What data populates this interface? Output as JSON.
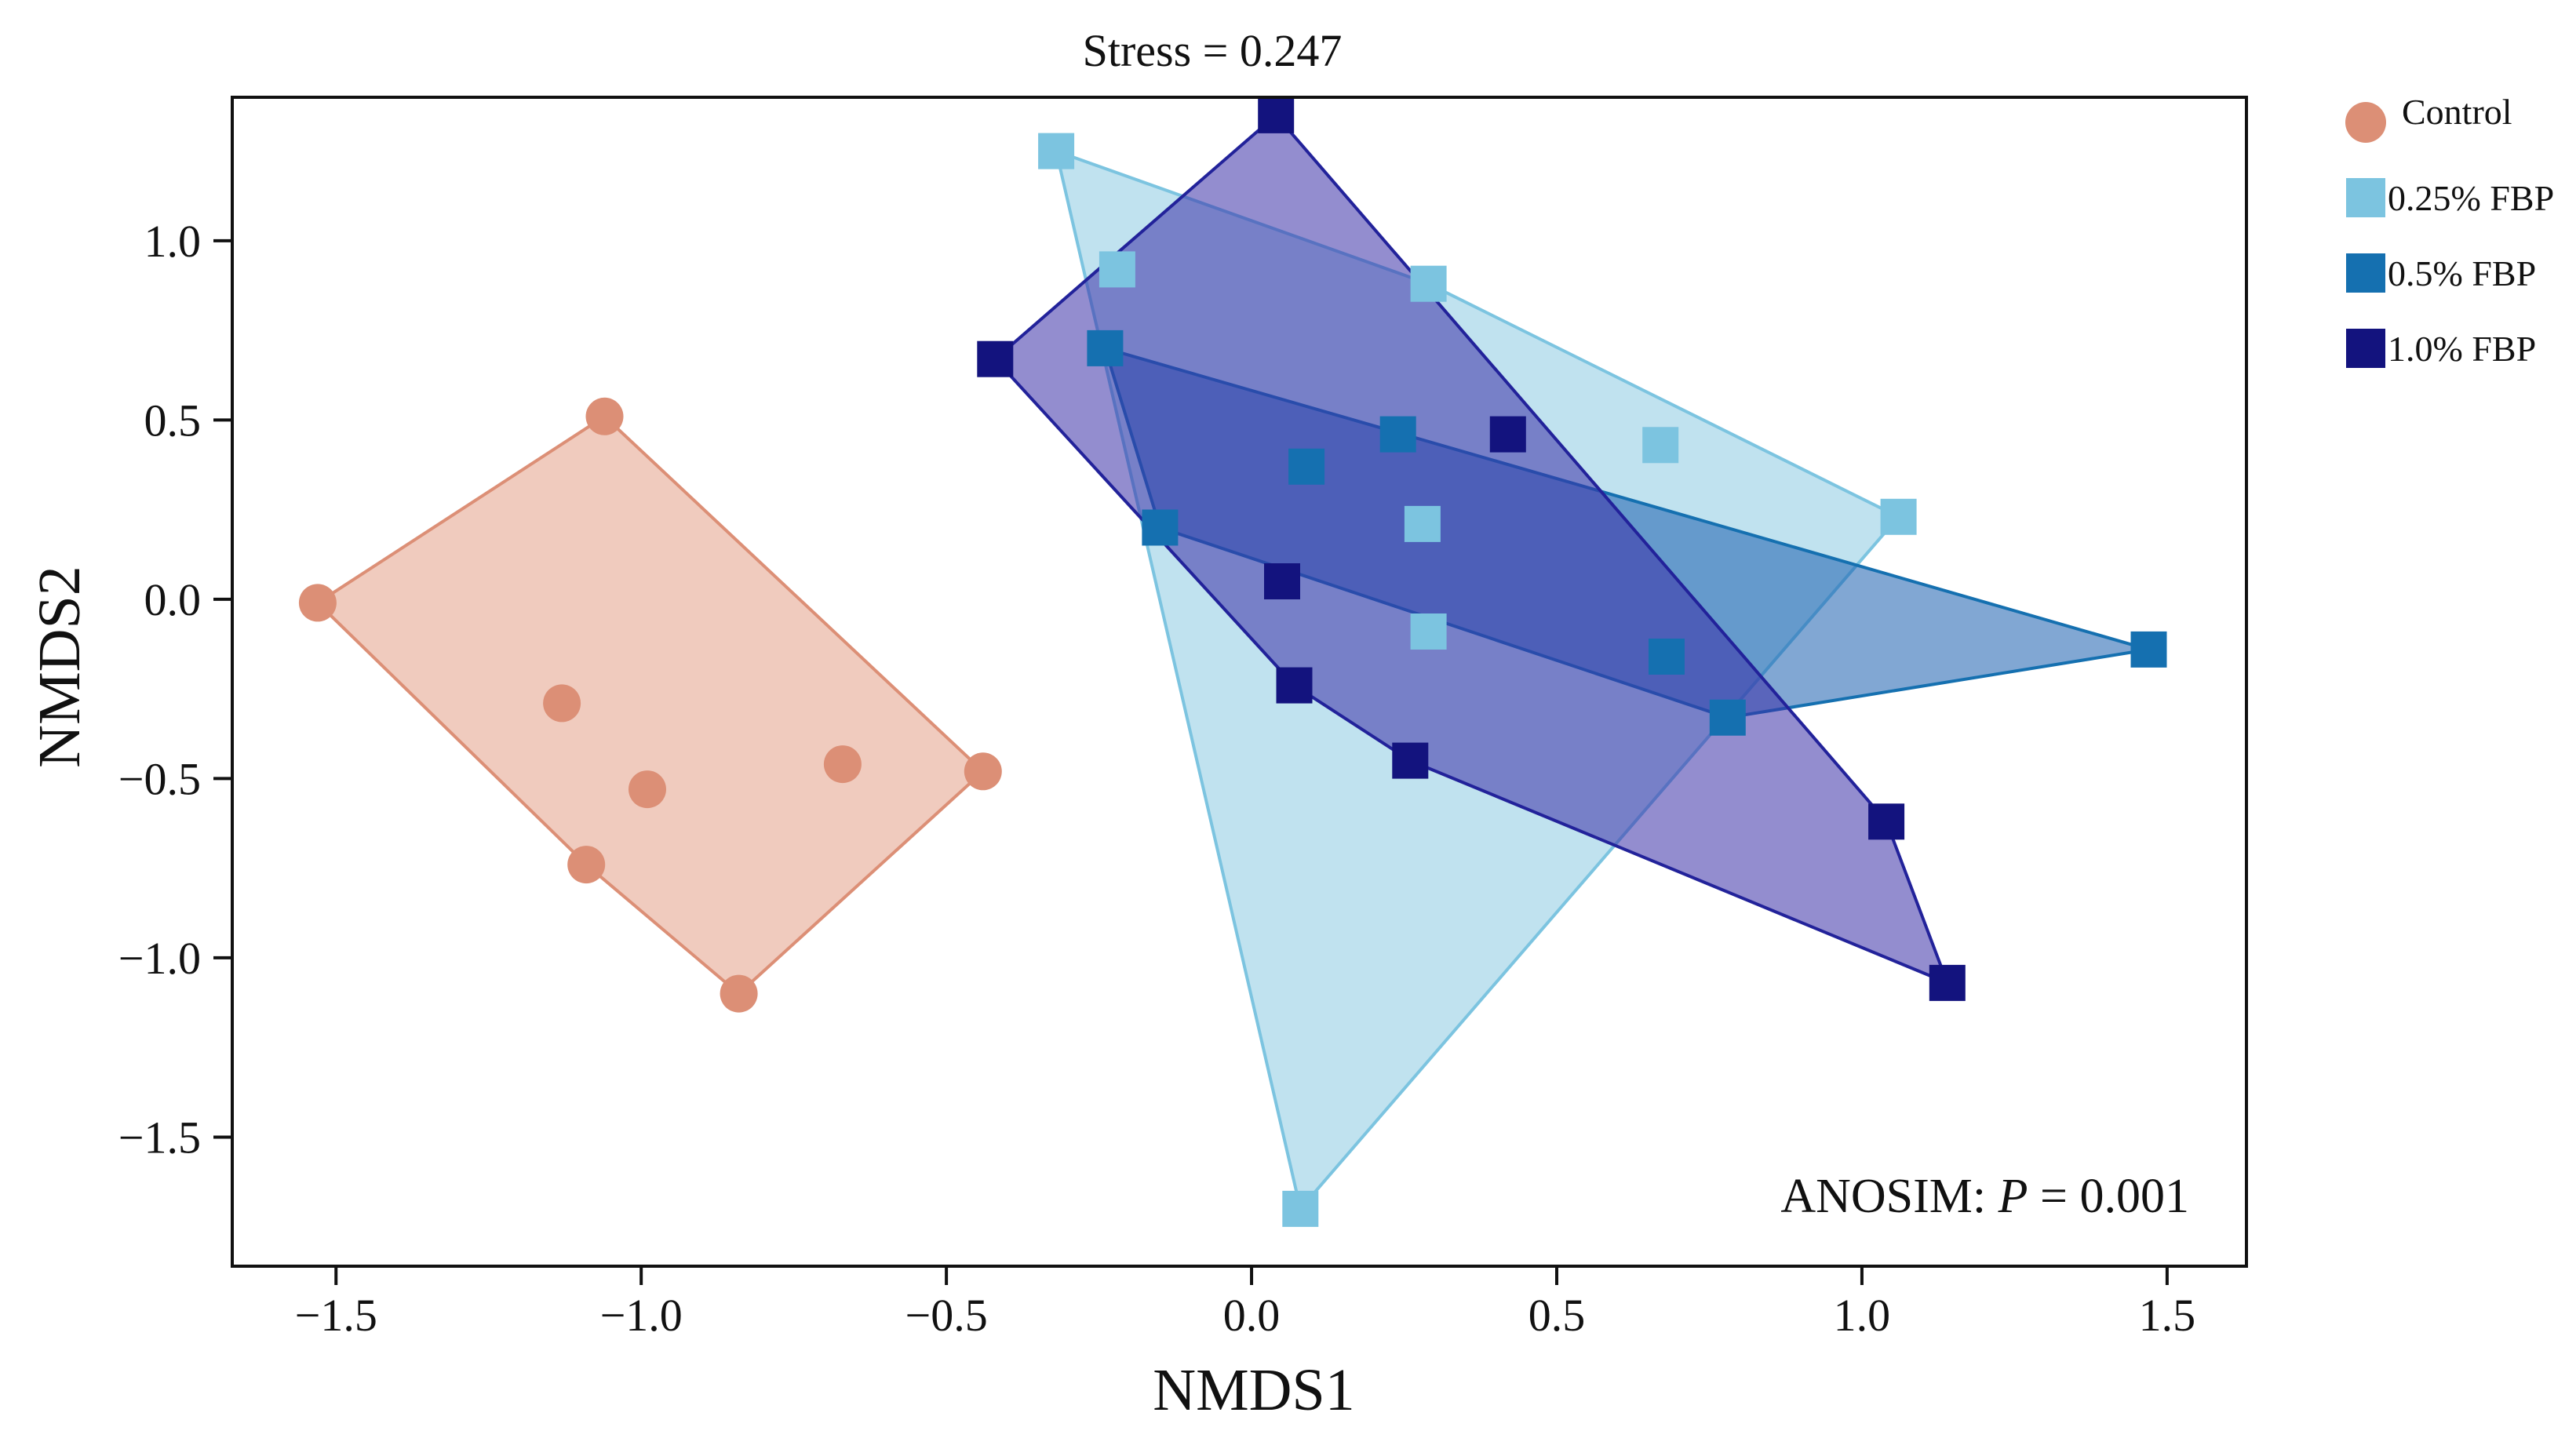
{
  "chart_data": {
    "type": "scatter",
    "title": "Stress = 0.247",
    "xlabel": "NMDS1",
    "ylabel": "NMDS2",
    "xlim": [
      -1.67,
      1.63
    ],
    "ylim": [
      -1.86,
      1.4
    ],
    "xticks": [
      -1.5,
      -1.0,
      -0.5,
      0.0,
      0.5,
      1.0,
      1.5
    ],
    "xtick_labels": [
      "−1.5",
      "−1.0",
      "−0.5",
      "0.0",
      "0.5",
      "1.0",
      "1.5"
    ],
    "yticks": [
      1.0,
      0.5,
      0.0,
      -0.5,
      -1.0,
      -1.5
    ],
    "ytick_labels": [
      "1.0",
      "0.5",
      "0.0",
      "−0.5",
      "−1.0",
      "−1.5"
    ],
    "annotation_prefix": "ANOSIM: ",
    "annotation_italic": "P",
    "annotation_suffix": " = 0.001",
    "legend_position": "right",
    "series": [
      {
        "name": "Control",
        "marker": "circle",
        "color": "#dc8f76",
        "fill_color": "#edc2b3",
        "hull_stroke": "#dc8f76",
        "points": [
          [
            -1.53,
            -0.01
          ],
          [
            -1.06,
            0.51
          ],
          [
            -1.13,
            -0.29
          ],
          [
            -0.99,
            -0.53
          ],
          [
            -1.09,
            -0.74
          ],
          [
            -0.84,
            -1.1
          ],
          [
            -0.67,
            -0.46
          ],
          [
            -0.44,
            -0.48
          ]
        ]
      },
      {
        "name": "0.25% FBP",
        "marker": "square",
        "color": "#7cc4e0",
        "fill_color": "#bde0ee",
        "hull_stroke": "#7cc4e0",
        "points": [
          [
            -0.32,
            1.25
          ],
          [
            -0.22,
            0.92
          ],
          [
            0.29,
            0.88
          ],
          [
            0.67,
            0.43
          ],
          [
            1.06,
            0.23
          ],
          [
            0.28,
            0.21
          ],
          [
            0.29,
            -0.09
          ],
          [
            0.08,
            -1.7
          ]
        ]
      },
      {
        "name": "0.5% FBP",
        "marker": "square",
        "color": "#1570b0",
        "fill_color": "#1a5fae",
        "hull_stroke": "#1570b0",
        "points": [
          [
            -0.24,
            0.7
          ],
          [
            -0.15,
            0.2
          ],
          [
            0.09,
            0.37
          ],
          [
            0.24,
            0.46
          ],
          [
            0.68,
            -0.16
          ],
          [
            0.78,
            -0.33
          ],
          [
            1.47,
            -0.14
          ]
        ]
      },
      {
        "name": "1.0% FBP",
        "marker": "square",
        "color": "#13137e",
        "fill_color": "#3a2fa8",
        "hull_stroke": "#22229a",
        "points": [
          [
            0.04,
            1.35
          ],
          [
            -0.42,
            0.67
          ],
          [
            0.42,
            0.46
          ],
          [
            0.05,
            0.05
          ],
          [
            0.07,
            -0.24
          ],
          [
            0.26,
            -0.45
          ],
          [
            1.04,
            -0.62
          ],
          [
            1.14,
            -1.07
          ]
        ]
      }
    ]
  }
}
